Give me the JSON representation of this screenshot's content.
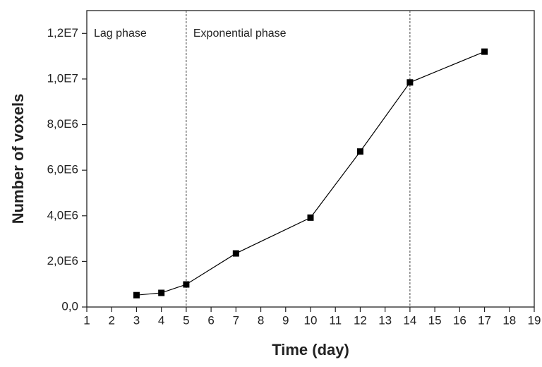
{
  "chart_data": {
    "type": "line",
    "x_label": "Time (day)",
    "y_label": "Number of voxels",
    "x": [
      3,
      4,
      5,
      7,
      10,
      12,
      14,
      17
    ],
    "series": [
      {
        "color": "#000000",
        "values": [
          520000,
          620000,
          990000,
          2350000,
          3920000,
          6820000,
          9850000,
          11200000
        ]
      }
    ],
    "xlim": [
      1,
      19
    ],
    "xticks": [
      1,
      2,
      3,
      4,
      5,
      6,
      7,
      8,
      9,
      10,
      11,
      12,
      13,
      14,
      15,
      16,
      17,
      18,
      19
    ],
    "ylim": [
      0,
      13000000
    ],
    "yticks": [
      {
        "value": 0,
        "label": "0,0"
      },
      {
        "value": 2000000,
        "label": "2,0E6"
      },
      {
        "value": 4000000,
        "label": "4,0E6"
      },
      {
        "value": 6000000,
        "label": "6,0E6"
      },
      {
        "value": 8000000,
        "label": "8,0E6"
      },
      {
        "value": 10000000,
        "label": "1,0E7"
      },
      {
        "value": 12000000,
        "label": "1,2E7"
      }
    ],
    "vlines": [
      5,
      14
    ],
    "annotations": [
      "Lag phase",
      "Exponential phase"
    ]
  }
}
